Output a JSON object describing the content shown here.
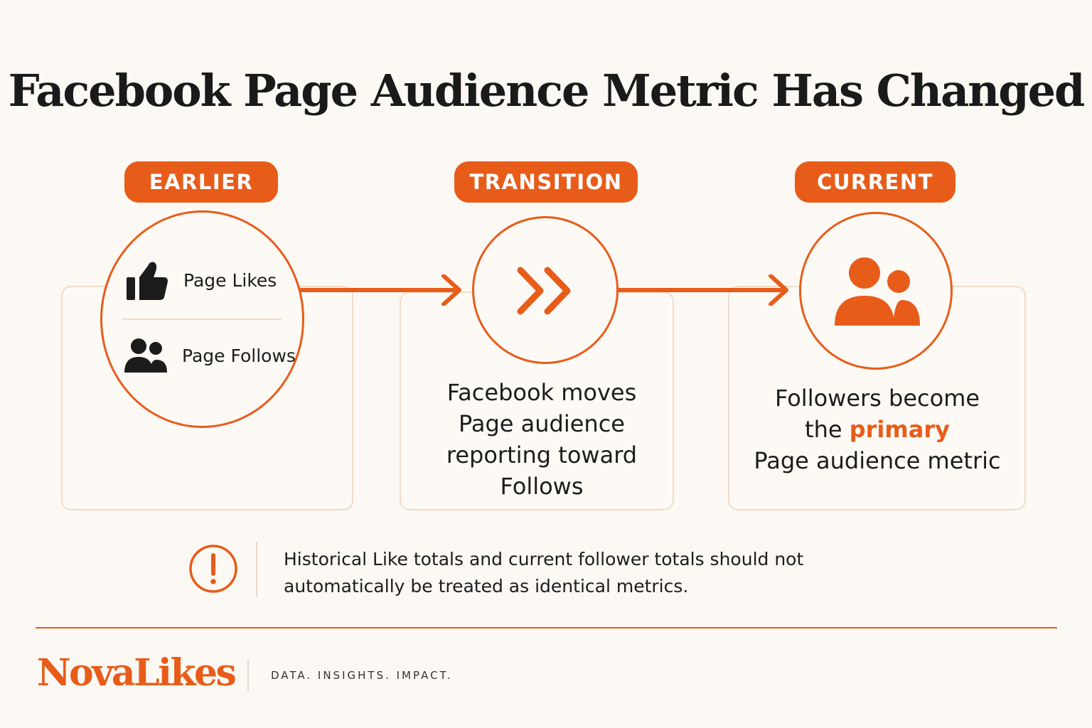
{
  "title": "Facebook Page Audience Metric Has Changed",
  "stages": [
    {
      "label": "EARLIER",
      "items": [
        {
          "icon": "thumbs-up-icon",
          "label": "Page Likes"
        },
        {
          "icon": "people-icon",
          "label": "Page Follows"
        }
      ]
    },
    {
      "label": "TRANSITION",
      "icon": "double-chevron-right-icon",
      "description": [
        "Facebook moves",
        "Page audience",
        "reporting toward",
        "Follows"
      ]
    },
    {
      "label": "CURRENT",
      "icon": "people-icon",
      "description_before": "Followers become",
      "description_prefix": "the ",
      "description_highlight": "primary",
      "description_after": "Page audience metric"
    }
  ],
  "note": {
    "icon": "exclamation-icon",
    "line1": "Historical Like totals and current follower totals should not",
    "line2": "automatically be treated as identical metrics."
  },
  "footer": {
    "brand": "NovaLikes",
    "tagline": "DATA. INSIGHTS. IMPACT."
  },
  "colors": {
    "accent": "#e85c1a",
    "card_border": "#efdcc9",
    "background": "#fcf9f4"
  }
}
